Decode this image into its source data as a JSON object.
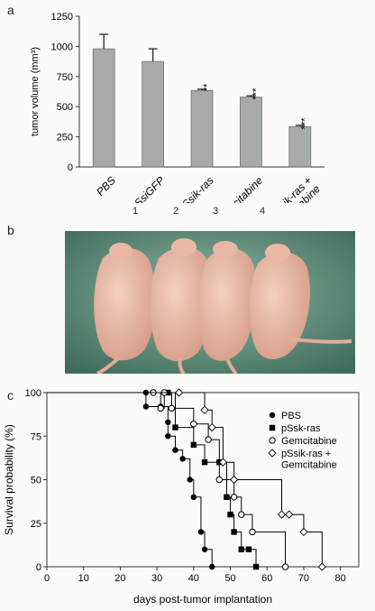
{
  "panels": {
    "a": "a",
    "b": "b",
    "c": "c"
  },
  "photo": {
    "mouse_labels": [
      "1",
      "2",
      "3",
      "4"
    ],
    "background_color": "#4f7f68",
    "mouse_color": "#e7b3a0"
  },
  "chart_data": [
    {
      "type": "bar",
      "categories": [
        "PBS",
        "pSsiGFP",
        "pSsik-ras",
        "gemcitabine",
        "pSsik-ras +\ngemcitabine"
      ],
      "category_lines": [
        [
          "PBS"
        ],
        [
          "pSsiGFP"
        ],
        [
          "pSsik-ras"
        ],
        [
          "gemcitabine"
        ],
        [
          "pSsik-ras +",
          "gemcitabine"
        ]
      ],
      "values": [
        980,
        875,
        635,
        580,
        335
      ],
      "errors": [
        120,
        105,
        10,
        10,
        10
      ],
      "significance": [
        "",
        "",
        "**",
        "***",
        "***"
      ],
      "ylabel": "tumor volume (mm³)",
      "xlabel": "",
      "ylim": [
        0,
        1250
      ],
      "yticks": [
        0,
        250,
        500,
        750,
        1000,
        1250
      ],
      "bar_color": "#a7aba5"
    },
    {
      "type": "line",
      "step": true,
      "xlabel": "days post-tumor implantation",
      "ylabel": "Survival probability (%)",
      "xlim": [
        0,
        85
      ],
      "ylim": [
        0,
        100
      ],
      "xticks": [
        0,
        10,
        20,
        30,
        40,
        50,
        60,
        70,
        80
      ],
      "yticks": [
        0,
        25,
        50,
        75,
        100
      ],
      "legend_position": "top-right",
      "series": [
        {
          "name": "PBS",
          "marker": "filled-circle",
          "x": [
            0,
            27,
            27,
            31,
            33,
            33,
            35,
            37,
            39,
            40,
            42,
            43,
            45
          ],
          "y": [
            100,
            100,
            92,
            92,
            83,
            75,
            67,
            62,
            50,
            40,
            20,
            10,
            0
          ]
        },
        {
          "name": "pSsk-ras",
          "marker": "filled-square",
          "x": [
            0,
            33,
            35,
            40,
            43,
            47,
            49,
            50,
            51,
            53,
            55,
            57
          ],
          "y": [
            100,
            100,
            80,
            70,
            60,
            60,
            40,
            30,
            20,
            10,
            10,
            0
          ]
        },
        {
          "name": "Gemcitabine",
          "marker": "open-circle",
          "x": [
            0,
            29,
            31,
            32,
            34,
            40,
            44,
            47,
            51,
            53,
            56,
            65
          ],
          "y": [
            100,
            100,
            91,
            100,
            91,
            82,
            73,
            50,
            40,
            30,
            20,
            0
          ]
        },
        {
          "name": "pSsik-ras +\nGemcitabine",
          "legend_lines": [
            "pSsik-ras +",
            "Gemcitabine"
          ],
          "marker": "open-diamond",
          "x": [
            0,
            36,
            43,
            45,
            48,
            51,
            64,
            66,
            70,
            75
          ],
          "y": [
            100,
            100,
            90,
            80,
            60,
            50,
            30,
            30,
            20,
            0
          ]
        }
      ]
    }
  ]
}
